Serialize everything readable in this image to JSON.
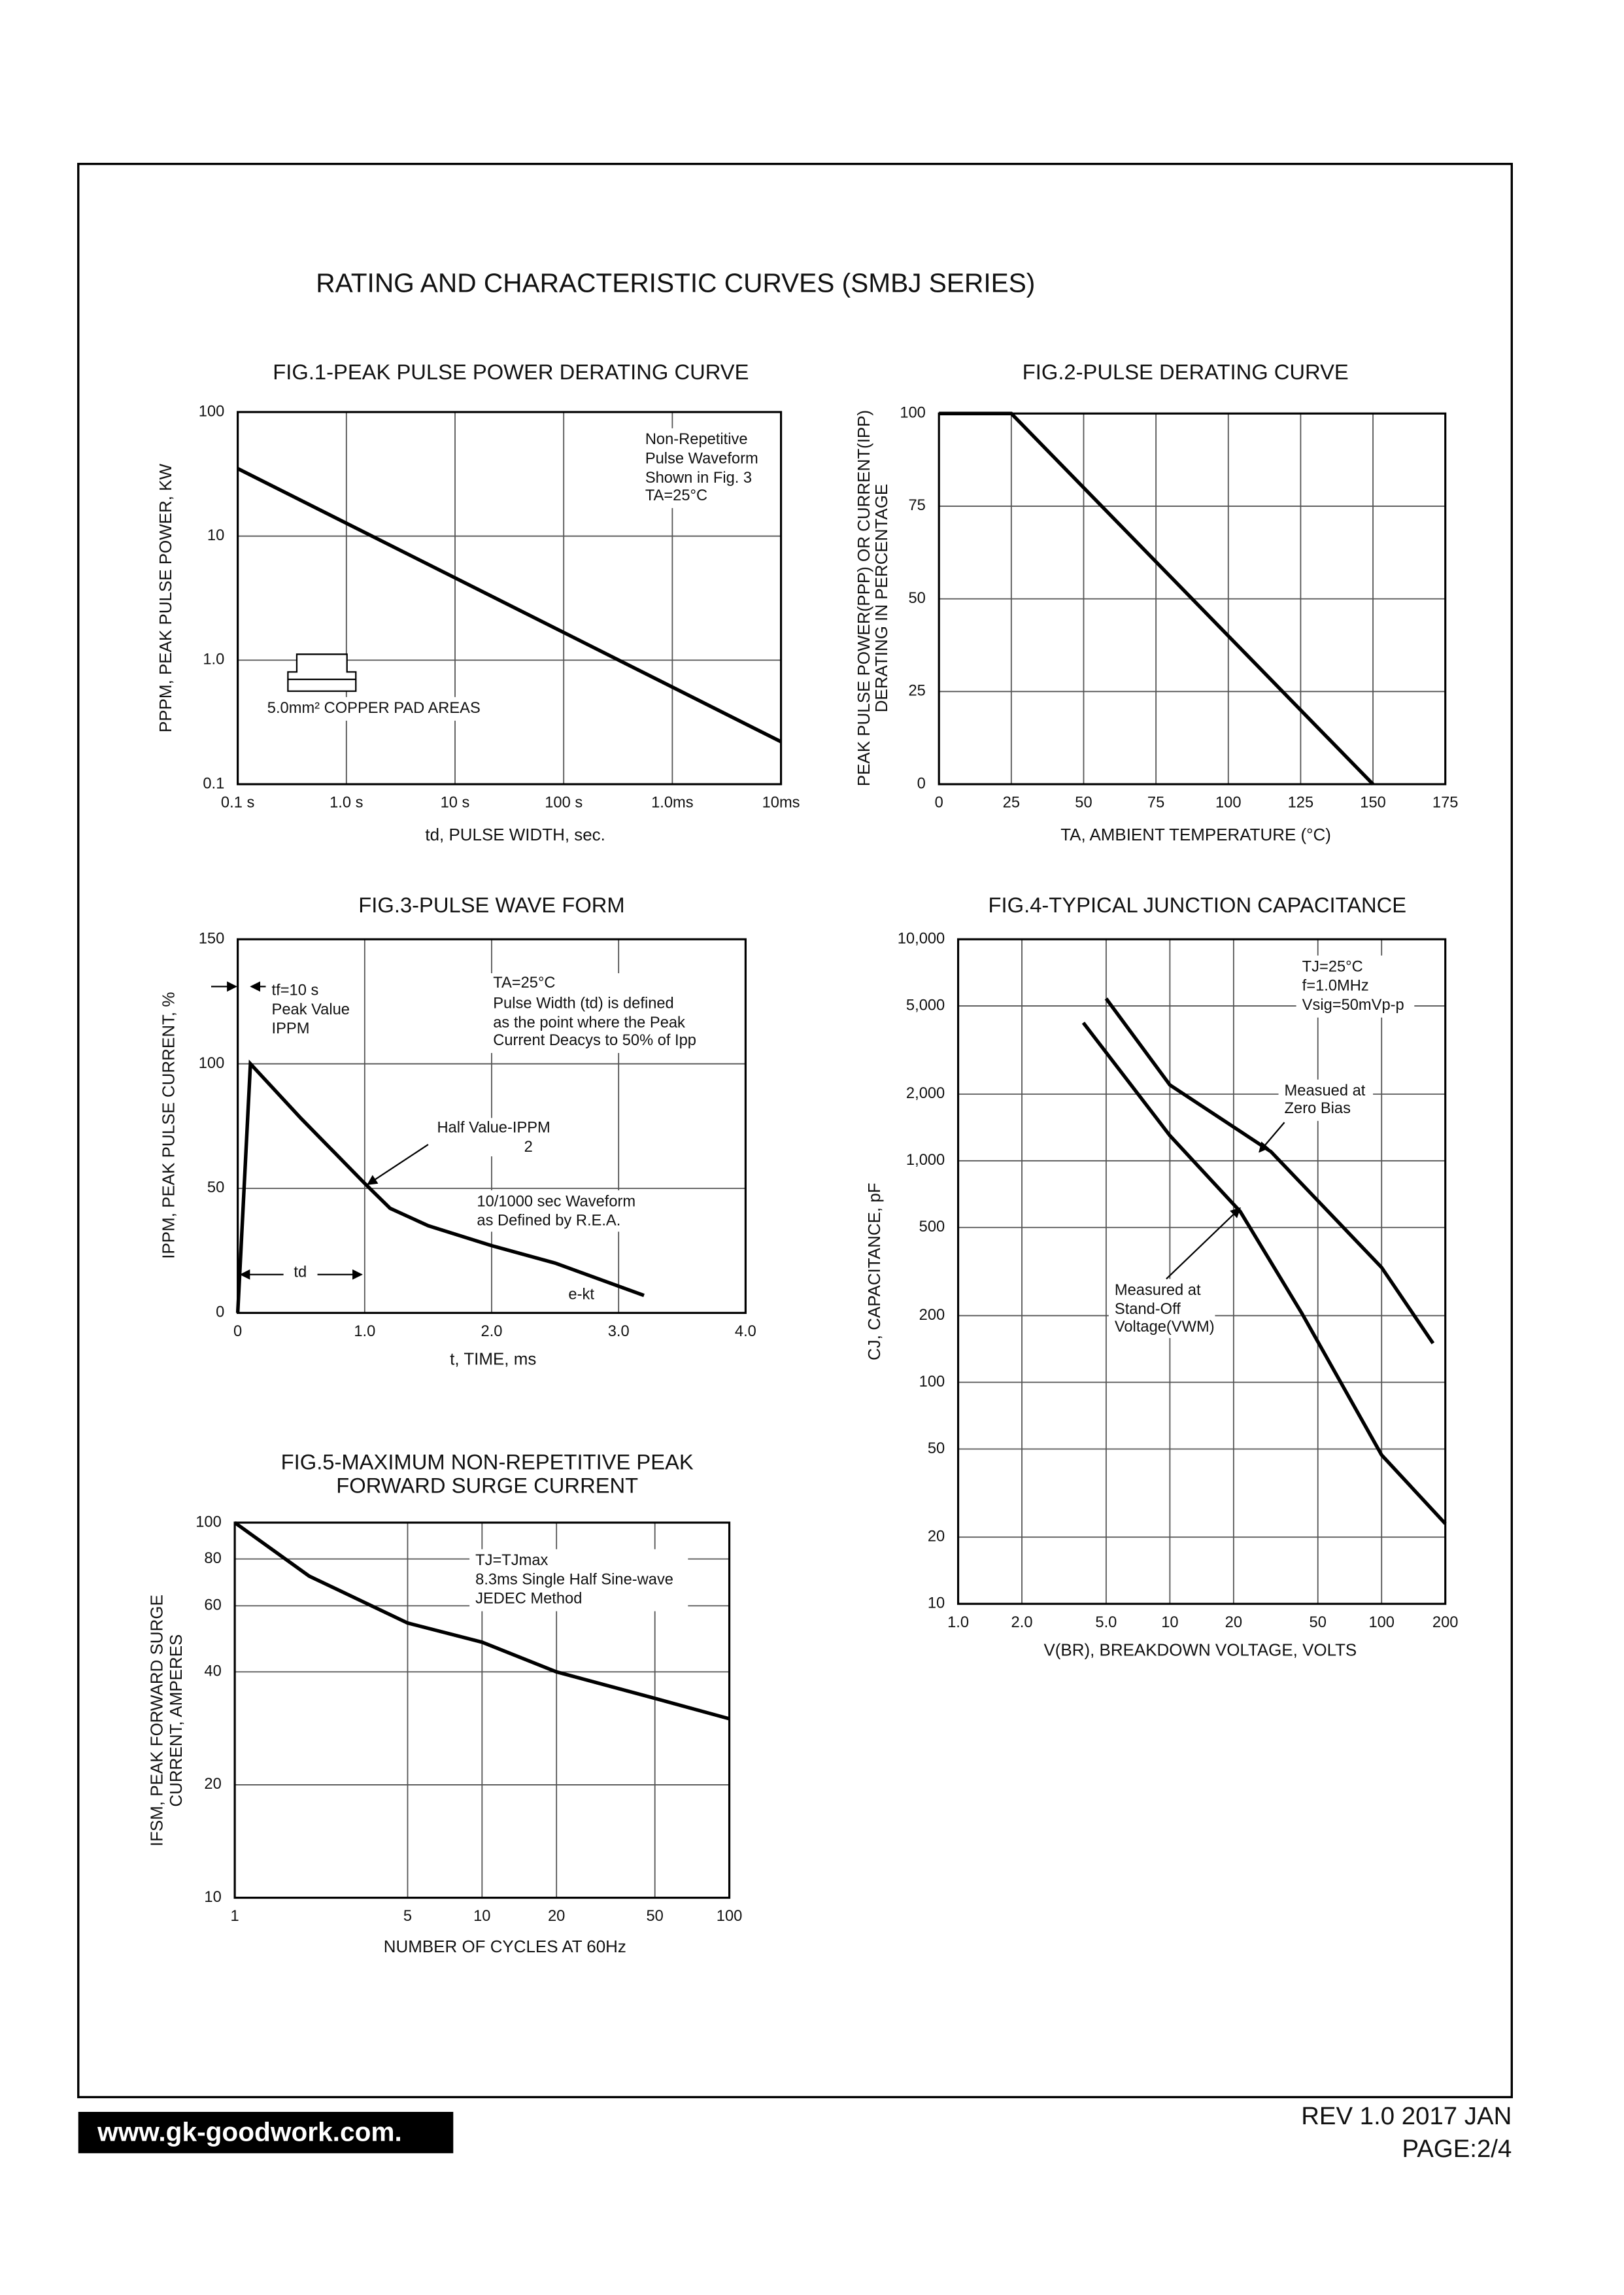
{
  "document": {
    "title": "RATING AND CHARACTERISTIC CURVES (SMBJ SERIES)",
    "website": "www.gk-goodwork.com.",
    "revision": "REV 1.0 2017 JAN",
    "page": "PAGE:2/4"
  },
  "chart_data": [
    {
      "type": "line",
      "title": [
        "FIG.1-PEAK PULSE POWER DERATING CURVE"
      ],
      "xlabel": "td, PULSE WIDTH, sec.",
      "ylabel": [
        "PPPM, PEAK PULSE POWER, KW"
      ],
      "xscale": "log",
      "yscale": "log",
      "grid": true,
      "xlim": [
        0.1,
        10000
      ],
      "xticks": [
        {
          "value": 0.1,
          "label": "0.1  s"
        },
        {
          "value": 1,
          "label": "1.0  s"
        },
        {
          "value": 10,
          "label": "10  s"
        },
        {
          "value": 100,
          "label": "100  s"
        },
        {
          "value": 1000,
          "label": "1.0ms"
        },
        {
          "value": 10000,
          "label": "10ms"
        }
      ],
      "ylim": [
        0.1,
        100
      ],
      "yticks": [
        0.1,
        {
          "value": 1,
          "label": "1.0"
        },
        10,
        100
      ],
      "series": [
        {
          "color": "#000000",
          "x": [
            0.1,
            10000
          ],
          "values": [
            35,
            0.22
          ]
        }
      ],
      "annotations": [
        "Non-Repetitive",
        "Pulse Waveform",
        "Shown in Fig. 3",
        "TA=25°C",
        "5.0mm² COPPER PAD AREAS"
      ]
    },
    {
      "type": "line",
      "title": [
        "FIG.2-PULSE DERATING CURVE"
      ],
      "xlabel": "TA, AMBIENT TEMPERATURE (°C)",
      "ylabel": [
        "PEAK PULSE POWER(PPP) OR CURRENT(IPP)",
        "DERATING IN PERCENTAGE"
      ],
      "xscale": "linear",
      "yscale": "linear",
      "grid": true,
      "xlim": [
        0,
        175
      ],
      "xticks": [
        0,
        25,
        50,
        75,
        100,
        125,
        150,
        175
      ],
      "ylim": [
        0,
        100
      ],
      "yticks": [
        0,
        25,
        50,
        75,
        100
      ],
      "series": [
        {
          "color": "#000000",
          "x": [
            0,
            25,
            150
          ],
          "values": [
            100,
            100,
            0
          ]
        }
      ],
      "annotations": []
    },
    {
      "type": "line",
      "title": [
        "FIG.3-PULSE WAVE FORM"
      ],
      "xlabel": "t, TIME, ms",
      "ylabel": [
        "IPPM, PEAK PULSE CURRENT, %"
      ],
      "xscale": "linear",
      "yscale": "linear",
      "grid": true,
      "xlim": [
        0,
        4
      ],
      "xticks": [
        0,
        {
          "value": 1,
          "label": "1.0"
        },
        {
          "value": 2,
          "label": "2.0"
        },
        {
          "value": 3,
          "label": "3.0"
        },
        {
          "value": 4,
          "label": "4.0"
        }
      ],
      "ylim": [
        0,
        150
      ],
      "yticks": [
        0,
        50,
        100,
        150
      ],
      "series": [
        {
          "color": "#000000",
          "x": [
            0,
            0.1,
            0.5,
            1.0,
            1.2,
            1.5,
            2.0,
            2.5,
            3.2
          ],
          "values": [
            0,
            100,
            78,
            52,
            42,
            35,
            27,
            20,
            7
          ]
        }
      ],
      "annotations": [
        "tf=10  s",
        "Peak Value",
        "IPPM",
        "TA=25°C",
        "Pulse Width (td) is defined",
        "as the point where the Peak",
        "Current Deacys to 50% of Ipp",
        "Half Value-IPPM",
        "2",
        "10/1000  sec Waveform",
        "as Defined by R.E.A.",
        "td",
        "e-kt"
      ]
    },
    {
      "type": "line",
      "title": [
        "FIG.4-TYPICAL JUNCTION CAPACITANCE"
      ],
      "xlabel": "V(BR), BREAKDOWN VOLTAGE, VOLTS",
      "ylabel": [
        "CJ, CAPACITANCE, pF"
      ],
      "xscale": "log",
      "yscale": "log",
      "grid": true,
      "xlim": [
        1,
        200
      ],
      "xticks": [
        {
          "value": 1,
          "label": "1.0"
        },
        {
          "value": 2,
          "label": "2.0"
        },
        {
          "value": 5,
          "label": "5.0"
        },
        10,
        20,
        50,
        100,
        200
      ],
      "ylim": [
        10,
        10000
      ],
      "yticks": [
        10,
        20,
        50,
        100,
        200,
        500,
        {
          "value": 1000,
          "label": "1,000"
        },
        {
          "value": 2000,
          "label": "2,000"
        },
        {
          "value": 5000,
          "label": "5,000"
        },
        {
          "value": 10000,
          "label": "10,000"
        }
      ],
      "series": [
        {
          "color": "#000000",
          "x": [
            5,
            10,
            30,
            100,
            175
          ],
          "values": [
            5400,
            2200,
            1100,
            330,
            150
          ]
        },
        {
          "color": "#000000",
          "x": [
            3.9,
            10,
            21.5,
            42,
            100,
            200
          ],
          "values": [
            4200,
            1300,
            590,
            205,
            47,
            23
          ]
        }
      ],
      "annotations": [
        "TJ=25°C",
        "f=1.0MHz",
        "Vsig=50mVp-p",
        "Measued at",
        "Zero Bias",
        "Measured at",
        "Stand-Off",
        "Voltage(VWM)"
      ]
    },
    {
      "type": "line",
      "title": [
        "FIG.5-MAXIMUM NON-REPETITIVE PEAK",
        "FORWARD SURGE CURRENT"
      ],
      "xlabel": "NUMBER OF CYCLES AT 60Hz",
      "ylabel": [
        "IFSM, PEAK FORWARD SURGE",
        "CURRENT, AMPERES"
      ],
      "xscale": "log",
      "yscale": "log",
      "grid": true,
      "xlim": [
        1,
        100
      ],
      "xticks": [
        1,
        5,
        10,
        20,
        50,
        100
      ],
      "ylim": [
        10,
        100
      ],
      "yticks": [
        10,
        20,
        40,
        60,
        80,
        100
      ],
      "series": [
        {
          "color": "#000000",
          "x": [
            1,
            2,
            5,
            10,
            20,
            50,
            100
          ],
          "values": [
            100,
            72,
            54,
            48,
            40,
            34,
            30
          ]
        }
      ],
      "annotations": [
        "TJ=TJmax",
        "8.3ms Single Half Sine-wave",
        "JEDEC Method"
      ]
    }
  ]
}
